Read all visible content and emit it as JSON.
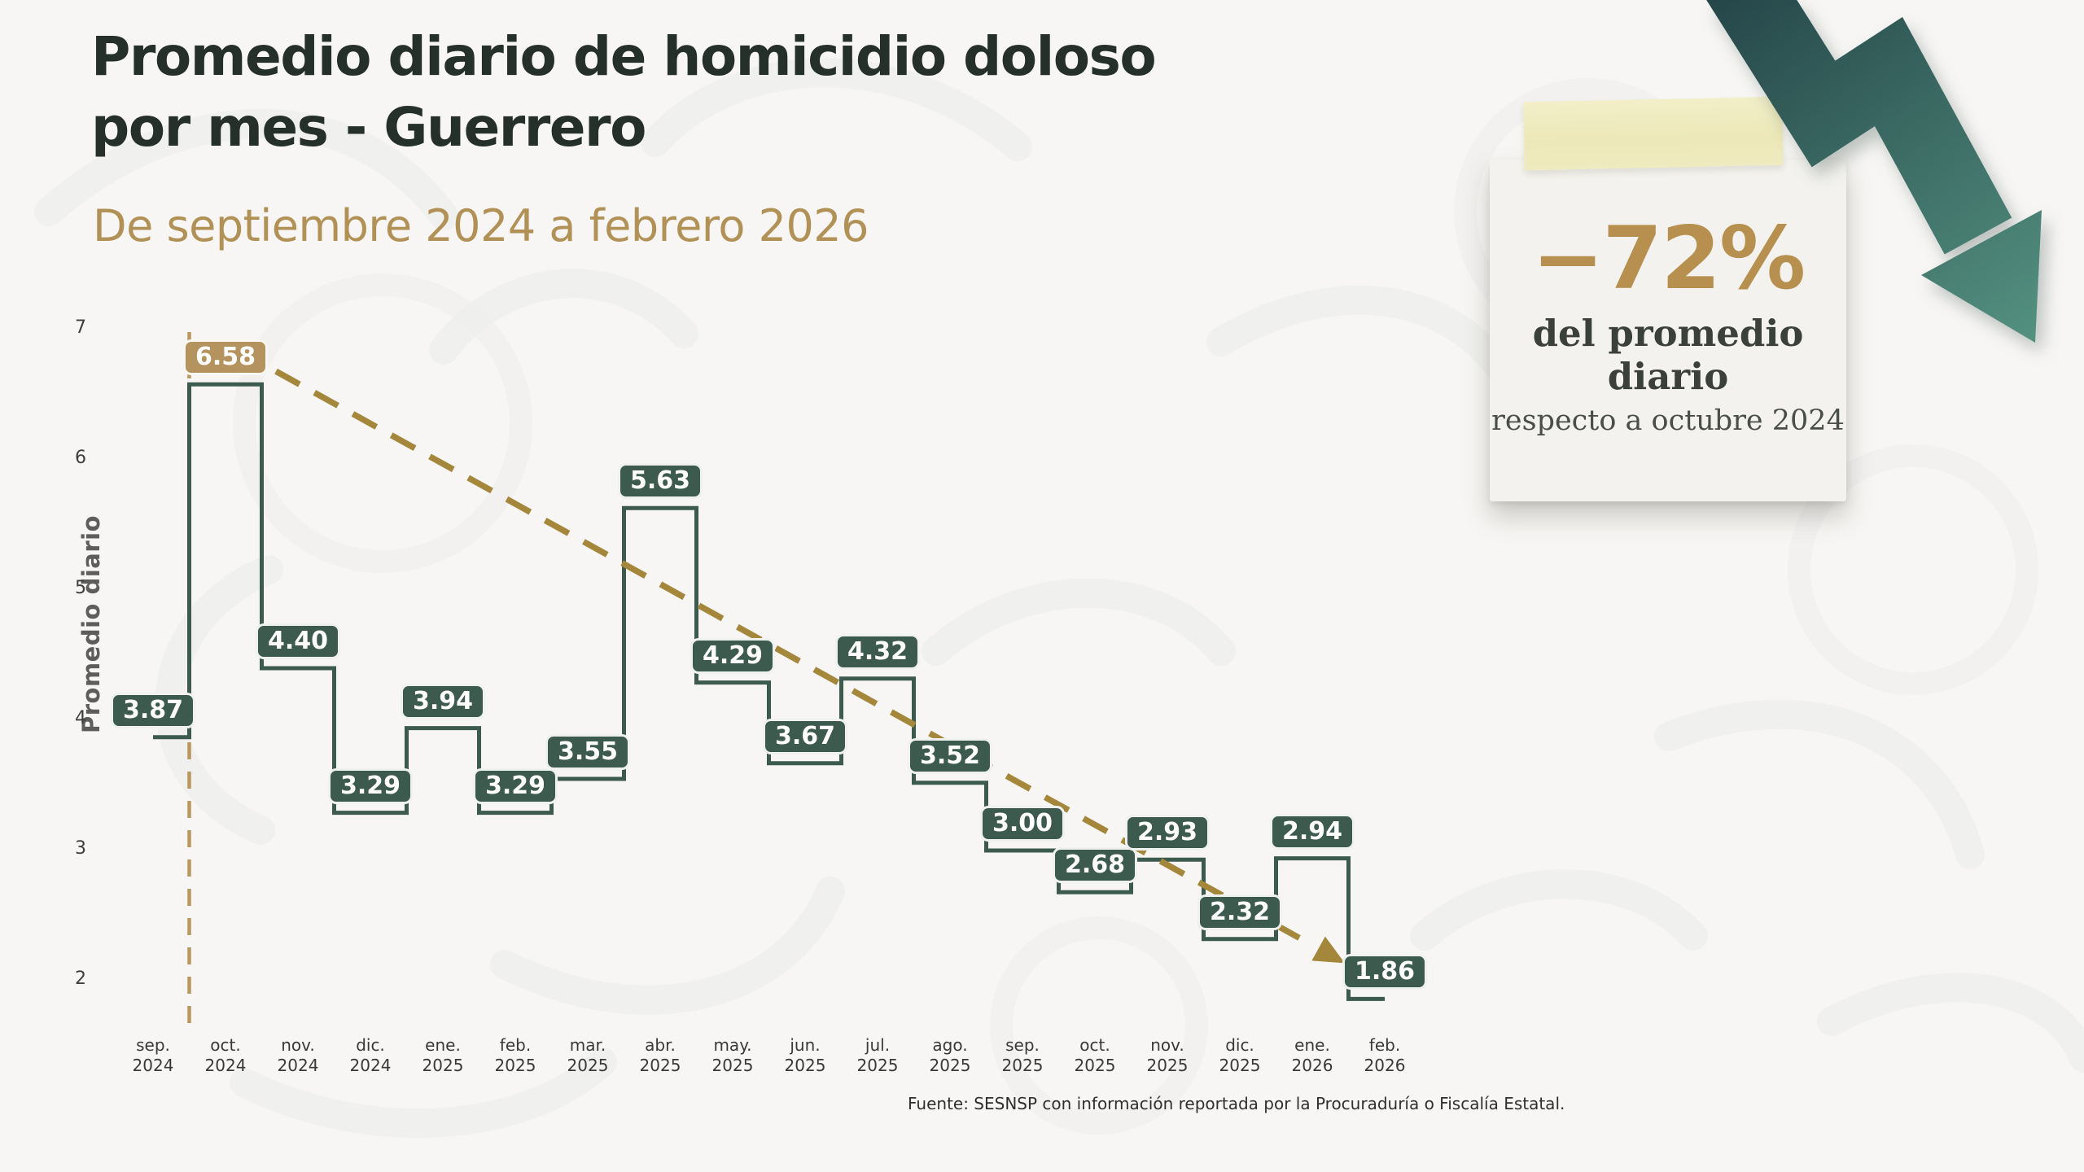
{
  "title": {
    "line1": "Promedio diario de homicidio doloso",
    "line2": "por mes - Guerrero"
  },
  "subtitle": "De septiembre 2024 a febrero 2026",
  "callout": {
    "percent": "−72%",
    "line1": "del promedio diario",
    "line2": "respecto a octubre 2024"
  },
  "source": "Fuente: SESNSP con información reportada por la Procuraduría o Fiscalía Estatal.",
  "chart_data": {
    "type": "line",
    "subtype": "step-mid",
    "title": "Promedio diario de homicidio doloso por mes - Guerrero",
    "xlabel": "",
    "ylabel": "Promedio diario",
    "categories": [
      "sep. 2024",
      "oct. 2024",
      "nov. 2024",
      "dic. 2024",
      "ene. 2025",
      "feb. 2025",
      "mar. 2025",
      "abr. 2025",
      "may. 2025",
      "jun. 2025",
      "jul. 2025",
      "ago. 2025",
      "sep. 2025",
      "oct. 2025",
      "nov. 2025",
      "dic. 2025",
      "ene. 2026",
      "feb. 2026"
    ],
    "values": [
      3.87,
      6.58,
      4.4,
      3.29,
      3.94,
      3.29,
      3.55,
      5.63,
      4.29,
      3.67,
      4.32,
      3.52,
      3.0,
      2.68,
      2.93,
      2.32,
      2.94,
      1.86
    ],
    "yticks": [
      2,
      3,
      4,
      5,
      6,
      7
    ],
    "ylim": [
      1.6,
      7.3
    ],
    "grid": false,
    "legend": "none",
    "highlight_index": 1,
    "annotations": {
      "reference_line": "vertical dashed line at start of oct. 2024",
      "trend_line": "dashed straight line falling from oct. 2024 peak to feb. 2026 with arrowhead"
    },
    "colors": {
      "line": "#3d5a4e",
      "label_bg": "#3d5a4e",
      "label_text": "#ffffff",
      "highlight_bg": "#b5935f",
      "trend": "#a5873c",
      "reference_line": "#b9985f",
      "axis_text": "#3e3e3c"
    }
  }
}
